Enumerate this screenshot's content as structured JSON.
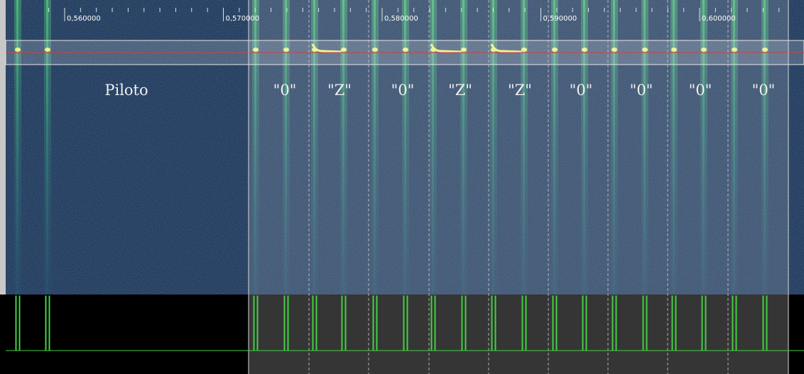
{
  "time_axis": {
    "ticks": [
      "0,560000",
      "0,570000",
      "0,580000",
      "0,590000",
      "0,600000"
    ]
  },
  "annotations": [
    "Piloto",
    "\"0\"",
    "\"Z\"",
    "\"0\"",
    "\"Z\"",
    "\"Z\"",
    "\"0\"",
    "\"0\"",
    "\"0\"",
    "\"0\""
  ]
}
